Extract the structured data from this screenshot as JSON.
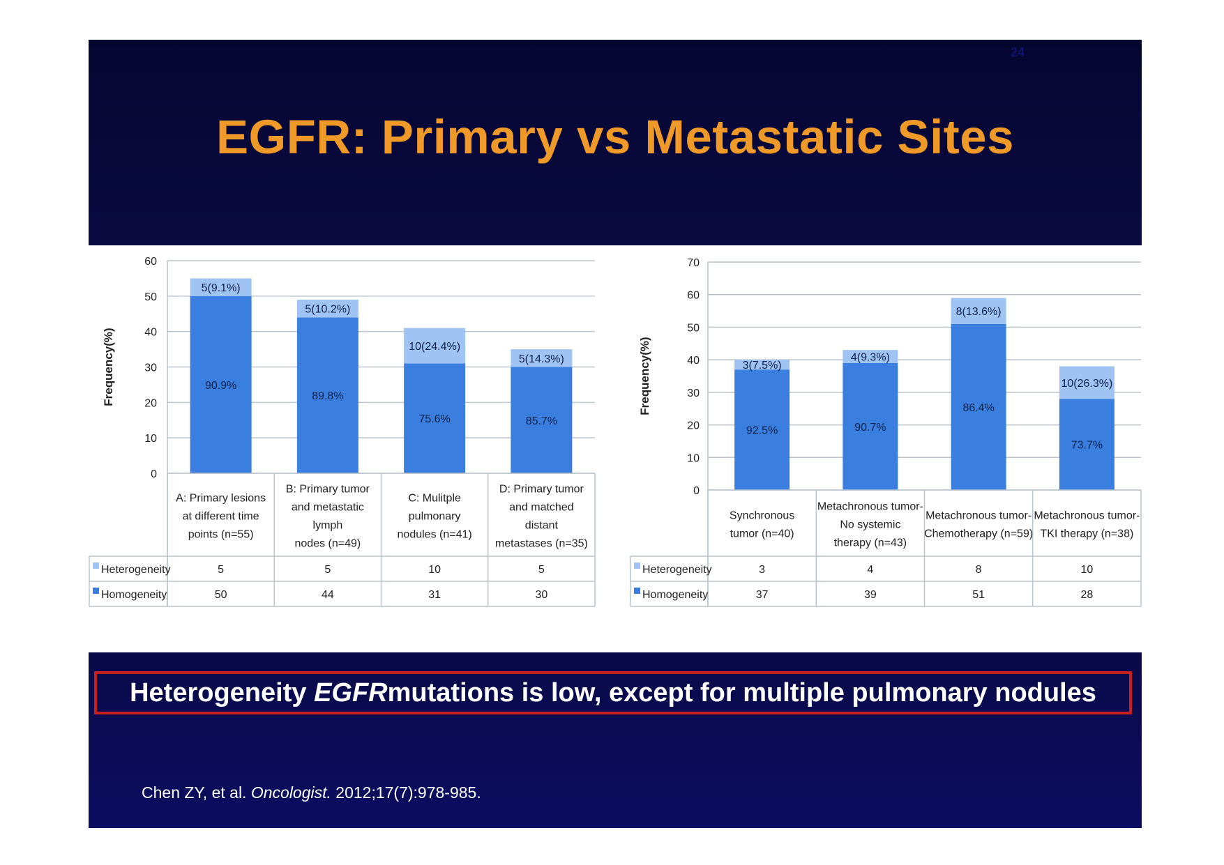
{
  "slide": {
    "number": "24",
    "title": "EGFR: Primary vs Metastatic Sites",
    "callout": {
      "pre": "Heterogeneity ",
      "italic": "EGFR",
      "post": " mutations is low, except for multiple pulmonary nodules"
    },
    "citation": {
      "pre": "Chen ZY, et al. ",
      "journal": "Oncologist.",
      "post": " 2012;17(7):978-985."
    },
    "colors": {
      "background": "#0a0a3c",
      "title": "#ef9a28",
      "callout_border": "#c8201e",
      "homogeneity": "#3a7fe0",
      "heterogeneity": "#9fc3f2"
    }
  },
  "chart_data": [
    {
      "type": "bar",
      "stacked": true,
      "ylabel": "Frequency(%)",
      "ylim": [
        0,
        60
      ],
      "yticks": [
        0,
        10,
        20,
        30,
        40,
        50,
        60
      ],
      "grid": true,
      "categories": [
        [
          "A: Primary lesions",
          "at different time",
          "points (n=55)"
        ],
        [
          "B: Primary tumor",
          "and metastatic",
          "lymph",
          "nodes (n=49)"
        ],
        [
          "C: Mulitple",
          "pulmonary",
          "nodules (n=41)"
        ],
        [
          "D: Primary tumor",
          "and matched",
          "distant",
          "metastases (n=35)"
        ]
      ],
      "series": [
        {
          "name": "Homogeneity",
          "values": [
            50,
            44,
            31,
            30
          ],
          "labels": [
            "90.9%",
            "89.8%",
            "75.6%",
            "85.7%"
          ]
        },
        {
          "name": "Heterogeneity",
          "values": [
            5,
            5,
            10,
            5
          ],
          "labels": [
            "5(9.1%)",
            "5(10.2%)",
            "10(24.4%)",
            "5(14.3%)"
          ]
        }
      ],
      "table": [
        {
          "name": "Heterogeneity",
          "values": [
            "5",
            "5",
            "10",
            "5"
          ]
        },
        {
          "name": "Homogeneity",
          "values": [
            "50",
            "44",
            "31",
            "30"
          ]
        }
      ]
    },
    {
      "type": "bar",
      "stacked": true,
      "ylabel": "Frequency(%)",
      "ylim": [
        0,
        70
      ],
      "yticks": [
        0,
        10,
        20,
        30,
        40,
        50,
        60,
        70
      ],
      "grid": true,
      "categories": [
        [
          "Synchronous",
          "tumor (n=40)"
        ],
        [
          "Metachronous tumor-",
          "No systemic",
          "therapy (n=43)"
        ],
        [
          "Metachronous tumor-",
          "Chemotherapy (n=59)"
        ],
        [
          "Metachronous tumor-",
          "TKI therapy (n=38)"
        ]
      ],
      "series": [
        {
          "name": "Homogeneity",
          "values": [
            37,
            39,
            51,
            28
          ],
          "labels": [
            "92.5%",
            "90.7%",
            "86.4%",
            "73.7%"
          ]
        },
        {
          "name": "Heterogeneity",
          "values": [
            3,
            4,
            8,
            10
          ],
          "labels": [
            "3(7.5%)",
            "4(9.3%)",
            "8(13.6%)",
            "10(26.3%)"
          ]
        }
      ],
      "table": [
        {
          "name": "Heterogeneity",
          "values": [
            "3",
            "4",
            "8",
            "10"
          ]
        },
        {
          "name": "Homogeneity",
          "values": [
            "37",
            "39",
            "51",
            "28"
          ]
        }
      ]
    }
  ]
}
